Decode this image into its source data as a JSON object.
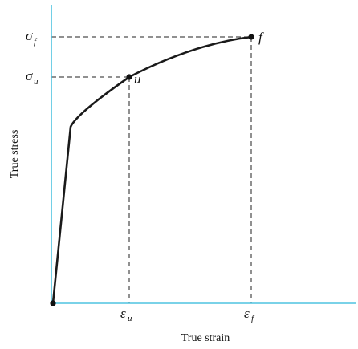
{
  "diagram": {
    "axes": {
      "x_label": "True strain",
      "y_label": "True stress",
      "axis_color": "#4ec3e0"
    },
    "curve": {
      "color": "#1a1a1a",
      "description_points": [
        "origin",
        "yield knee",
        "u",
        "f"
      ]
    },
    "points": {
      "u": {
        "label": "u"
      },
      "f": {
        "label": "f"
      }
    },
    "ticks": {
      "sigma_u": {
        "symbol": "σ",
        "subscript": "u"
      },
      "sigma_f": {
        "symbol": "σ",
        "subscript": "f"
      },
      "eps_u": {
        "symbol": "ε",
        "subscript": "u"
      },
      "eps_f": {
        "symbol": "ε",
        "subscript": "f"
      }
    },
    "guide_line_style": "dashed"
  }
}
